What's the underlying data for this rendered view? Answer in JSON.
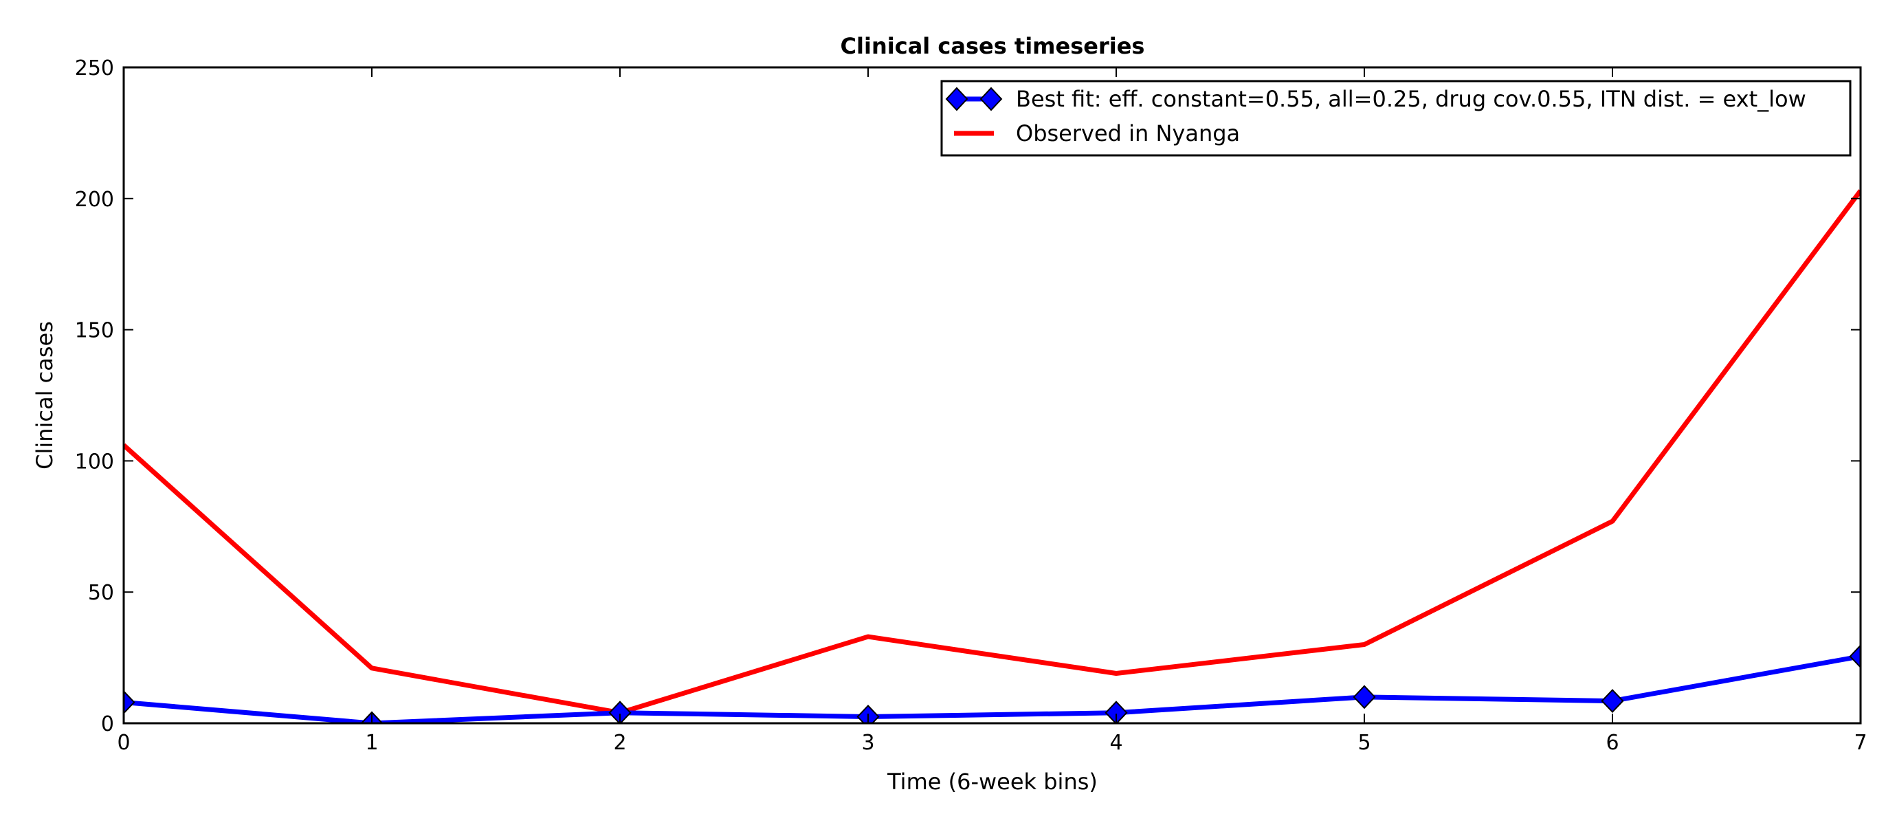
{
  "chart_data": {
    "type": "line",
    "title": "Clinical cases timeseries",
    "xlabel": "Time (6-week bins)",
    "ylabel": "Clinical cases",
    "xlim": [
      0,
      7
    ],
    "ylim": [
      0,
      250
    ],
    "x": [
      0,
      1,
      2,
      3,
      4,
      5,
      6,
      7
    ],
    "xticks": [
      "0",
      "1",
      "2",
      "3",
      "4",
      "5",
      "6",
      "7"
    ],
    "yticks": [
      "0",
      "50",
      "100",
      "150",
      "200",
      "250"
    ],
    "grid": false,
    "legend_position": "top-right",
    "series": [
      {
        "name": "Best fit: eff. constant=0.55, all=0.25, drug cov.0.55, ITN dist. = ext_low",
        "values": [
          8,
          0,
          4,
          2.5,
          4,
          10,
          8.5,
          25.5
        ],
        "color": "#0000ff",
        "marker": "diamond"
      },
      {
        "name": "Observed in Nyanga",
        "values": [
          106,
          21,
          4,
          33,
          19,
          30,
          77,
          203
        ],
        "color": "#ff0000",
        "marker": "none"
      }
    ]
  }
}
